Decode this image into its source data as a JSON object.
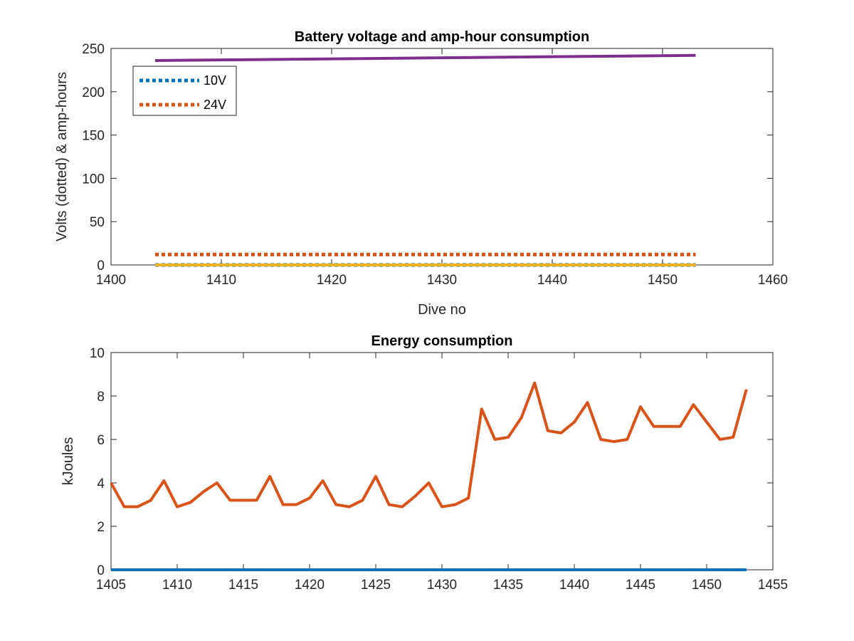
{
  "chart_data": [
    {
      "type": "line",
      "title": "Battery voltage and amp-hour consumption",
      "xlabel": "Dive no",
      "ylabel": "Volts (dotted) & amp-hours",
      "xlim": [
        1400,
        1460
      ],
      "ylim": [
        0,
        250
      ],
      "xticks": [
        "1400",
        "1410",
        "1420",
        "1430",
        "1440",
        "1450",
        "1460"
      ],
      "yticks": [
        "0",
        "50",
        "100",
        "150",
        "200",
        "250"
      ],
      "grid": false,
      "legend": {
        "position": "top-left",
        "entries": [
          "10V",
          "24V"
        ]
      },
      "series": [
        {
          "name": "10V",
          "style": "dotted",
          "color": "#0072BD",
          "x": [
            1404,
            1453
          ],
          "values": [
            0,
            0
          ]
        },
        {
          "name": "24V",
          "style": "dotted",
          "color": "#D95319",
          "x": [
            1404,
            1453
          ],
          "values": [
            12,
            12
          ]
        },
        {
          "style": "solid",
          "color": "#EDB120",
          "x": [
            1404,
            1453
          ],
          "values": [
            0,
            0
          ]
        },
        {
          "style": "solid",
          "color": "#7E2F8E",
          "x": [
            1404,
            1453
          ],
          "values": [
            236,
            242
          ]
        }
      ]
    },
    {
      "type": "line",
      "title": "Energy consumption",
      "xlabel": "",
      "ylabel": "kJoules",
      "xlim": [
        1405,
        1455
      ],
      "ylim": [
        0,
        10
      ],
      "xticks": [
        "1405",
        "1410",
        "1415",
        "1420",
        "1425",
        "1430",
        "1435",
        "1440",
        "1445",
        "1450",
        "1455"
      ],
      "yticks": [
        "0",
        "2",
        "4",
        "6",
        "8",
        "10"
      ],
      "grid": false,
      "series": [
        {
          "style": "solid",
          "color": "#0072BD",
          "x": [
            1405,
            1453
          ],
          "values": [
            0,
            0
          ]
        },
        {
          "style": "solid",
          "color": "#D95319",
          "x": [
            1405,
            1406,
            1407,
            1408,
            1409,
            1410,
            1411,
            1412,
            1413,
            1414,
            1415,
            1416,
            1417,
            1418,
            1419,
            1420,
            1421,
            1422,
            1423,
            1424,
            1425,
            1426,
            1427,
            1428,
            1429,
            1430,
            1431,
            1432,
            1433,
            1434,
            1435,
            1436,
            1437,
            1438,
            1439,
            1440,
            1441,
            1442,
            1443,
            1444,
            1445,
            1446,
            1447,
            1448,
            1449,
            1450,
            1451,
            1452,
            1453
          ],
          "values": [
            4.0,
            2.9,
            2.9,
            3.2,
            4.1,
            2.9,
            3.1,
            3.6,
            4.0,
            3.2,
            3.2,
            3.2,
            4.3,
            3.0,
            3.0,
            3.3,
            4.1,
            3.0,
            2.9,
            3.2,
            4.3,
            3.0,
            2.9,
            3.4,
            4.0,
            2.9,
            3.0,
            3.3,
            7.4,
            6.0,
            6.1,
            7.0,
            8.6,
            6.4,
            6.3,
            6.8,
            7.7,
            6.0,
            5.9,
            6.0,
            7.5,
            6.6,
            6.6,
            6.6,
            7.6,
            6.8,
            6.0,
            6.1,
            8.3
          ]
        }
      ]
    }
  ]
}
